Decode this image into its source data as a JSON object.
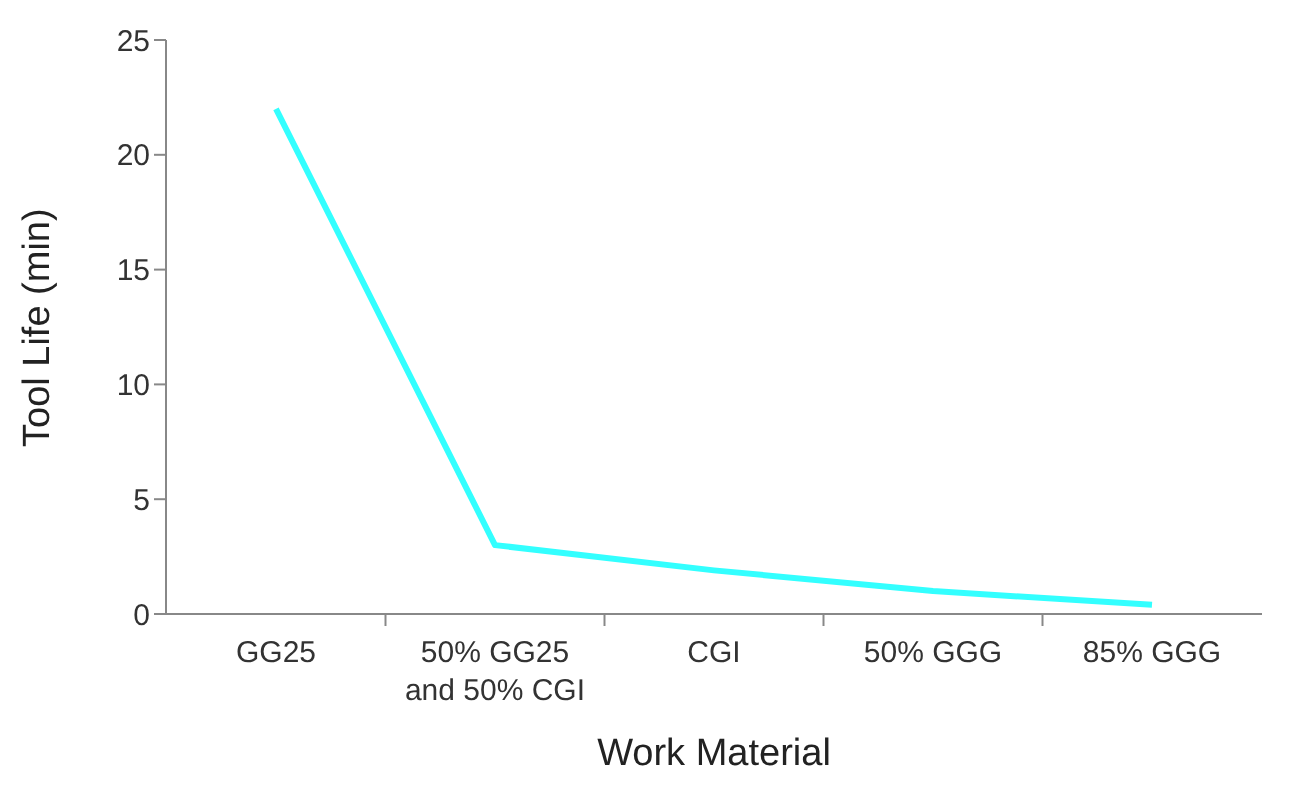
{
  "chart_data": {
    "type": "line",
    "xlabel": "Work Material",
    "ylabel": "Tool Life (min)",
    "categories": [
      "GG25",
      "50% GG25 and 50% CGI",
      "CGI",
      "50% GGG",
      "85% GGG"
    ],
    "series": [
      {
        "color": "#33ffff",
        "values": [
          22,
          3,
          1.9,
          1.0,
          0.4
        ]
      }
    ],
    "ylim": [
      0,
      25
    ],
    "yticks": [
      0,
      5,
      10,
      15,
      20,
      25
    ],
    "grid": false,
    "legend": false,
    "marker": "none",
    "line_style": "solid"
  }
}
